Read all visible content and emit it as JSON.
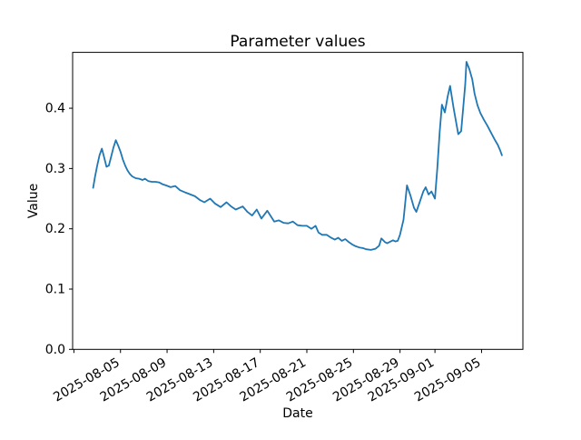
{
  "figure": {
    "title": "Parameter values",
    "xlabel": "Date",
    "ylabel": "Value"
  },
  "chart_data": {
    "type": "line",
    "title": "Parameter values",
    "xlabel": "Date",
    "ylabel": "Value",
    "x_unit": "days since 2025-08-01 00:00",
    "x_range_dates": [
      "2025-08-02",
      "2025-09-07"
    ],
    "xlim": [
      -0.11,
      38.55
    ],
    "ylim": [
      0.0,
      0.4927
    ],
    "grid": false,
    "legend": false,
    "line_color": "#1f77b4",
    "xticks": {
      "offsets": [
        0,
        4,
        8,
        12,
        16,
        20,
        24,
        28,
        31,
        35
      ],
      "labels": [
        "",
        "2025-08-05",
        "2025-08-09",
        "2025-08-13",
        "2025-08-17",
        "2025-08-21",
        "2025-08-25",
        "2025-08-29",
        "2025-09-01",
        "2025-09-05"
      ],
      "rotation_deg": 30
    },
    "yticks": {
      "values": [
        0.0,
        0.1,
        0.2,
        0.3,
        0.4
      ],
      "labels": [
        "0.0",
        "0.1",
        "0.2",
        "0.3",
        "0.4"
      ]
    },
    "series": [
      {
        "name": "Value",
        "color": "#1f77b4",
        "x": [
          1.65,
          1.8,
          2.0,
          2.2,
          2.4,
          2.6,
          2.8,
          3.0,
          3.2,
          3.4,
          3.6,
          3.8,
          4.0,
          4.2,
          4.4,
          4.6,
          4.8,
          5.0,
          5.3,
          5.6,
          5.9,
          6.1,
          6.4,
          6.7,
          7.0,
          7.3,
          7.6,
          7.9,
          8.3,
          8.7,
          9.1,
          9.6,
          10.0,
          10.4,
          10.8,
          11.2,
          11.7,
          12.1,
          12.6,
          13.1,
          13.5,
          13.9,
          14.5,
          14.9,
          15.3,
          15.7,
          16.1,
          16.6,
          17.2,
          17.6,
          18.0,
          18.4,
          18.8,
          19.2,
          19.6,
          20.0,
          20.4,
          20.75,
          21.0,
          21.3,
          21.7,
          22.1,
          22.4,
          22.7,
          23.0,
          23.3,
          23.6,
          23.9,
          24.2,
          24.5,
          24.8,
          25.1,
          25.5,
          25.9,
          26.2,
          26.4,
          26.7,
          26.9,
          27.2,
          27.4,
          27.6,
          27.8,
          28.0,
          28.3,
          28.6,
          28.9,
          29.2,
          29.4,
          29.7,
          30.0,
          30.2,
          30.45,
          30.7,
          31.0,
          31.2,
          31.4,
          31.6,
          31.85,
          32.1,
          32.3,
          32.6,
          33.0,
          33.25,
          33.4,
          33.6,
          33.7,
          33.95,
          34.2,
          34.4,
          34.65,
          34.9,
          35.2,
          35.5,
          35.8,
          36.1,
          36.4,
          36.6,
          36.75
        ],
        "y": [
          0.268,
          0.285,
          0.305,
          0.322,
          0.333,
          0.318,
          0.303,
          0.305,
          0.32,
          0.335,
          0.347,
          0.338,
          0.328,
          0.315,
          0.305,
          0.297,
          0.291,
          0.287,
          0.284,
          0.283,
          0.281,
          0.283,
          0.279,
          0.278,
          0.278,
          0.277,
          0.274,
          0.272,
          0.269,
          0.271,
          0.264,
          0.26,
          0.257,
          0.254,
          0.248,
          0.244,
          0.25,
          0.242,
          0.236,
          0.244,
          0.237,
          0.232,
          0.237,
          0.228,
          0.222,
          0.232,
          0.217,
          0.23,
          0.212,
          0.214,
          0.21,
          0.209,
          0.212,
          0.206,
          0.205,
          0.205,
          0.2,
          0.205,
          0.194,
          0.19,
          0.19,
          0.185,
          0.182,
          0.185,
          0.18,
          0.183,
          0.178,
          0.174,
          0.171,
          0.169,
          0.168,
          0.166,
          0.165,
          0.167,
          0.172,
          0.184,
          0.178,
          0.176,
          0.179,
          0.181,
          0.179,
          0.18,
          0.19,
          0.215,
          0.272,
          0.255,
          0.235,
          0.228,
          0.245,
          0.262,
          0.269,
          0.257,
          0.262,
          0.25,
          0.3,
          0.36,
          0.406,
          0.393,
          0.42,
          0.437,
          0.4,
          0.357,
          0.362,
          0.395,
          0.44,
          0.477,
          0.465,
          0.448,
          0.424,
          0.405,
          0.392,
          0.381,
          0.371,
          0.36,
          0.349,
          0.339,
          0.33,
          0.322
        ]
      }
    ]
  }
}
